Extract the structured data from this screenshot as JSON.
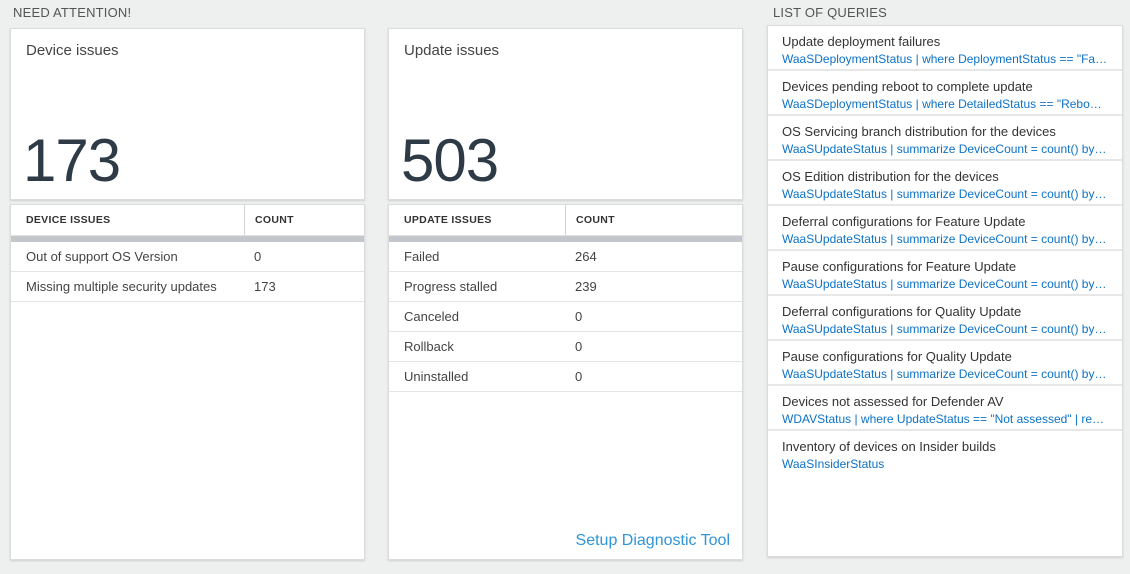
{
  "sections": {
    "need_attention_label": "NEED ATTENTION!",
    "list_of_queries_label": "LIST OF QUERIES"
  },
  "device_tile": {
    "title": "Device issues",
    "count": "173"
  },
  "device_table": {
    "col_label": "DEVICE ISSUES",
    "col_count": "COUNT",
    "rows": [
      {
        "label": "Out of support OS Version",
        "count": "0"
      },
      {
        "label": "Missing multiple security updates",
        "count": "173"
      }
    ]
  },
  "update_tile": {
    "title": "Update issues",
    "count": "503"
  },
  "update_table": {
    "col_label": "UPDATE ISSUES",
    "col_count": "COUNT",
    "rows": [
      {
        "label": "Failed",
        "count": "264"
      },
      {
        "label": "Progress stalled",
        "count": "239"
      },
      {
        "label": "Canceled",
        "count": "0"
      },
      {
        "label": "Rollback",
        "count": "0"
      },
      {
        "label": "Uninstalled",
        "count": "0"
      }
    ],
    "footer_link": "Setup Diagnostic Tool"
  },
  "queries": [
    {
      "title": "Update deployment failures",
      "query": "WaaSDeploymentStatus | where DeploymentStatus == \"Failed\" |..."
    },
    {
      "title": "Devices pending reboot to complete update",
      "query": "WaaSDeploymentStatus | where DetailedStatus == \"Reboot pend..."
    },
    {
      "title": "OS Servicing branch distribution for the devices",
      "query": "WaaSUpdateStatus | summarize DeviceCount = count() by OSSer..."
    },
    {
      "title": "OS Edition distribution for the devices",
      "query": "WaaSUpdateStatus | summarize DeviceCount = count() by OSEdit..."
    },
    {
      "title": "Deferral configurations for Feature Update",
      "query": "WaaSUpdateStatus | summarize DeviceCount = count() by Featur..."
    },
    {
      "title": "Pause configurations for Feature Update",
      "query": "WaaSUpdateStatus | summarize DeviceCount = count() by Featur..."
    },
    {
      "title": "Deferral configurations for Quality Update",
      "query": "WaaSUpdateStatus | summarize DeviceCount = count() by Qualit..."
    },
    {
      "title": "Pause configurations for Quality Update",
      "query": "WaaSUpdateStatus | summarize DeviceCount = count() by Qualit..."
    },
    {
      "title": "Devices not assessed for Defender AV",
      "query": "WDAVStatus | where UpdateStatus == \"Not assessed\" | render ta..."
    },
    {
      "title": "Inventory of devices on Insider builds",
      "query": "WaaSInsiderStatus"
    }
  ],
  "colors": {
    "page_background": "#eef0f0",
    "tile_number": "#2e3a46",
    "query_link_blue": "#0d72c6",
    "setup_link_blue": "#3094d8",
    "table_bar_gray": "#c3c7cb"
  }
}
